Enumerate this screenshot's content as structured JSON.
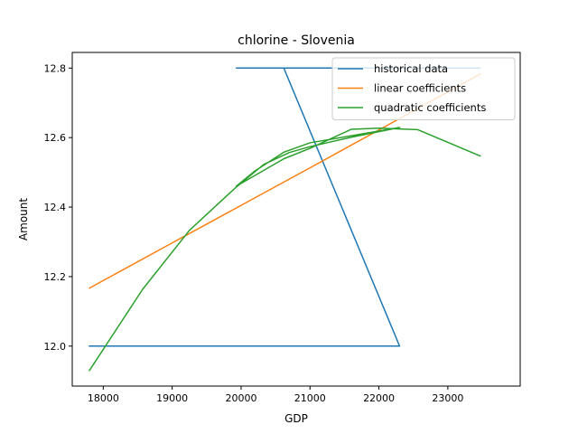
{
  "chart_data": {
    "type": "line",
    "title": "chlorine - Slovenia",
    "xlabel": "GDP",
    "ylabel": "Amount",
    "xlim": [
      17550,
      24050
    ],
    "ylim": [
      11.885,
      12.845
    ],
    "x_ticks": [
      18000,
      19000,
      20000,
      21000,
      22000,
      23000
    ],
    "y_ticks": [
      12.0,
      12.2,
      12.4,
      12.6,
      12.8
    ],
    "x_tick_labels": [
      "18000",
      "19000",
      "20000",
      "21000",
      "22000",
      "23000"
    ],
    "y_tick_labels": [
      "12.0",
      "12.2",
      "12.4",
      "12.6",
      "12.8"
    ],
    "grid": false,
    "legend_position": "top-right",
    "series": [
      {
        "name": "historical data",
        "color": "#1f77b4",
        "x": [
          17800,
          22300,
          20620,
          19930,
          20800,
          19950,
          20620,
          21000,
          22000,
          23000,
          23470
        ],
        "y": [
          12.0,
          12.0,
          12.8,
          12.8,
          12.8,
          12.8,
          12.8,
          12.8,
          12.8,
          12.8,
          12.8
        ]
      },
      {
        "name": "linear coefficients",
        "color": "#ff7f0e",
        "x": [
          17800,
          19000,
          20000,
          21000,
          22000,
          23470
        ],
        "y": [
          12.167,
          12.297,
          12.405,
          12.513,
          12.622,
          12.783
        ]
      },
      {
        "name": "quadratic coefficients",
        "color": "#2ca02c",
        "x": [
          17800,
          18570,
          19250,
          19920,
          20330,
          20700,
          21000,
          21600,
          22300,
          21000,
          20620,
          20200,
          19930,
          20620,
          21000,
          21600,
          22000,
          22560,
          23470
        ],
        "y": [
          11.93,
          12.163,
          12.333,
          12.456,
          12.523,
          12.557,
          12.574,
          12.601,
          12.629,
          12.585,
          12.558,
          12.504,
          12.46,
          12.539,
          12.569,
          12.624,
          12.627,
          12.623,
          12.547
        ]
      }
    ]
  }
}
